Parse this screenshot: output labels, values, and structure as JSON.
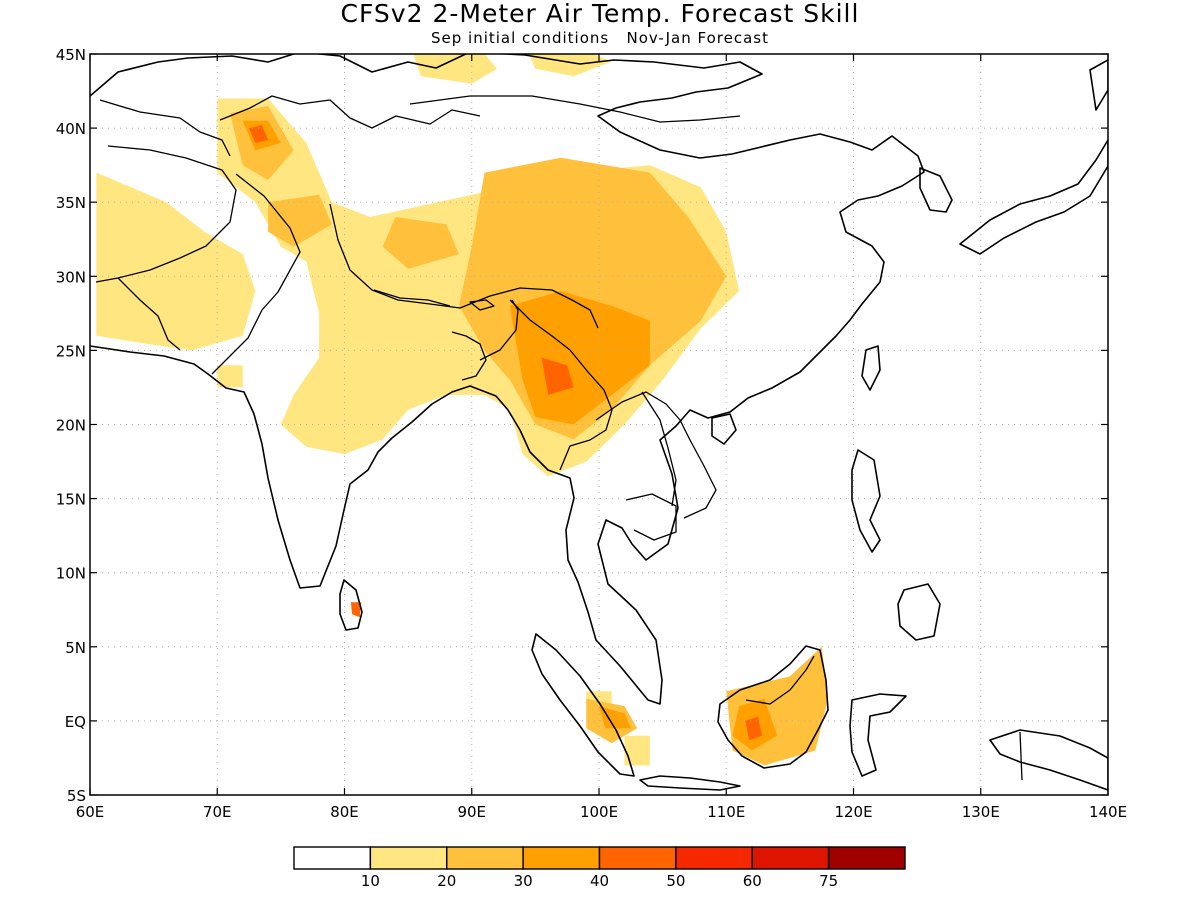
{
  "title": "CFSv2 2-Meter Air Temp. Forecast Skill",
  "subtitle": "Sep initial conditions   Nov-Jan Forecast",
  "map": {
    "lon_range": [
      60,
      140
    ],
    "lat_range": [
      -5,
      45
    ],
    "grid": true,
    "x_ticks": [
      {
        "value": 60,
        "label": "60E"
      },
      {
        "value": 70,
        "label": "70E"
      },
      {
        "value": 80,
        "label": "80E"
      },
      {
        "value": 90,
        "label": "90E"
      },
      {
        "value": 100,
        "label": "100E"
      },
      {
        "value": 110,
        "label": "110E"
      },
      {
        "value": 120,
        "label": "120E"
      },
      {
        "value": 130,
        "label": "130E"
      },
      {
        "value": 140,
        "label": "140E"
      }
    ],
    "y_ticks": [
      {
        "value": 45,
        "label": "45N"
      },
      {
        "value": 40,
        "label": "40N"
      },
      {
        "value": 35,
        "label": "35N"
      },
      {
        "value": 30,
        "label": "30N"
      },
      {
        "value": 25,
        "label": "25N"
      },
      {
        "value": 20,
        "label": "20N"
      },
      {
        "value": 15,
        "label": "15N"
      },
      {
        "value": 10,
        "label": "10N"
      },
      {
        "value": 5,
        "label": "5N"
      },
      {
        "value": 0,
        "label": "EQ"
      },
      {
        "value": -5,
        "label": "5S"
      }
    ]
  },
  "colorbar": {
    "colors": [
      "#ffffff",
      "#ffe680",
      "#ffc03c",
      "#ffa000",
      "#ff6400",
      "#f52800",
      "#dc1400",
      "#a00000"
    ],
    "labels": [
      "10",
      "20",
      "30",
      "40",
      "50",
      "60",
      "75"
    ]
  },
  "skill_regions": [
    {
      "level": 1,
      "points": [
        [
          60.5,
          37
        ],
        [
          66,
          35
        ],
        [
          69,
          33
        ],
        [
          72,
          31.5
        ],
        [
          73,
          29
        ],
        [
          72,
          26
        ],
        [
          68,
          25
        ],
        [
          64,
          25.5
        ],
        [
          60.5,
          26
        ]
      ]
    },
    {
      "level": 1,
      "points": [
        [
          70,
          42
        ],
        [
          74,
          42
        ],
        [
          77,
          39
        ],
        [
          79,
          35
        ],
        [
          82,
          34
        ],
        [
          90,
          35.5
        ],
        [
          98,
          37
        ],
        [
          104,
          37.5
        ],
        [
          108,
          36
        ],
        [
          110,
          33
        ],
        [
          111,
          29
        ],
        [
          108,
          26.5
        ],
        [
          105,
          23
        ],
        [
          102,
          20
        ],
        [
          99,
          17.5
        ],
        [
          96,
          16.5
        ],
        [
          94,
          18
        ],
        [
          93,
          21
        ],
        [
          91,
          22
        ],
        [
          88,
          22
        ],
        [
          85,
          21
        ],
        [
          83,
          19
        ],
        [
          80,
          18
        ],
        [
          77,
          18.5
        ],
        [
          75,
          20
        ],
        [
          76,
          22
        ],
        [
          78,
          24.5
        ],
        [
          78,
          27.5
        ],
        [
          77,
          31
        ],
        [
          75,
          32
        ],
        [
          73,
          35
        ],
        [
          70,
          37
        ]
      ]
    },
    {
      "level": 1,
      "points": [
        [
          85,
          46
        ],
        [
          90,
          46
        ],
        [
          92,
          44
        ],
        [
          90,
          43
        ],
        [
          86,
          43.5
        ]
      ]
    },
    {
      "level": 1,
      "points": [
        [
          94,
          46
        ],
        [
          98,
          45.5
        ],
        [
          101,
          44.5
        ],
        [
          98,
          43.5
        ],
        [
          95,
          44
        ]
      ]
    },
    {
      "level": 1,
      "points": [
        [
          70,
          24
        ],
        [
          72,
          24
        ],
        [
          72,
          22.5
        ],
        [
          70,
          22.5
        ]
      ]
    },
    {
      "level": 1,
      "points": [
        [
          102,
          -1
        ],
        [
          104,
          -1
        ],
        [
          104,
          -3
        ],
        [
          102,
          -3
        ]
      ]
    },
    {
      "level": 1,
      "points": [
        [
          99,
          2
        ],
        [
          101,
          2
        ],
        [
          101,
          0.5
        ],
        [
          99,
          0.5
        ]
      ]
    },
    {
      "level": 2,
      "points": [
        [
          71,
          41
        ],
        [
          74,
          41.5
        ],
        [
          76,
          38.5
        ],
        [
          74,
          36.5
        ],
        [
          72,
          37.5
        ]
      ]
    },
    {
      "level": 2,
      "points": [
        [
          74,
          35
        ],
        [
          78,
          35.5
        ],
        [
          79,
          33.5
        ],
        [
          76,
          32
        ],
        [
          74,
          33
        ]
      ]
    },
    {
      "level": 2,
      "points": [
        [
          84,
          34
        ],
        [
          88,
          33.5
        ],
        [
          89,
          31.5
        ],
        [
          85,
          30.5
        ],
        [
          83,
          32
        ]
      ]
    },
    {
      "level": 2,
      "points": [
        [
          91,
          37
        ],
        [
          97,
          38
        ],
        [
          104,
          37
        ],
        [
          107,
          34
        ],
        [
          110,
          30
        ],
        [
          108,
          27
        ],
        [
          104,
          24
        ],
        [
          101,
          21
        ],
        [
          98,
          19
        ],
        [
          95,
          20
        ],
        [
          93,
          23
        ],
        [
          91,
          25
        ],
        [
          89,
          28
        ],
        [
          90,
          32
        ]
      ]
    },
    {
      "level": 2,
      "points": [
        [
          110,
          2
        ],
        [
          115,
          3
        ],
        [
          117.5,
          5
        ],
        [
          118,
          1.5
        ],
        [
          117,
          -2
        ],
        [
          113,
          -3
        ],
        [
          110.5,
          -2
        ]
      ]
    },
    {
      "level": 2,
      "points": [
        [
          99,
          1.5
        ],
        [
          102,
          1
        ],
        [
          103,
          -0.5
        ],
        [
          101,
          -1.5
        ],
        [
          99,
          -0.5
        ]
      ]
    },
    {
      "level": 3,
      "points": [
        [
          72,
          40.5
        ],
        [
          74,
          40.5
        ],
        [
          75,
          39
        ],
        [
          73,
          38.5
        ]
      ]
    },
    {
      "level": 3,
      "points": [
        [
          93,
          28
        ],
        [
          97,
          29
        ],
        [
          101,
          28
        ],
        [
          104,
          27
        ],
        [
          104,
          24
        ],
        [
          101,
          22
        ],
        [
          98,
          20
        ],
        [
          95,
          20.5
        ],
        [
          94,
          23
        ]
      ]
    },
    {
      "level": 3,
      "points": [
        [
          111,
          1
        ],
        [
          113,
          1.5
        ],
        [
          114,
          -1
        ],
        [
          112,
          -2
        ],
        [
          110.5,
          -1
        ]
      ]
    },
    {
      "level": 3,
      "points": [
        [
          100,
          1
        ],
        [
          102,
          0.5
        ],
        [
          102.5,
          -0.5
        ],
        [
          100.5,
          -0.5
        ]
      ]
    },
    {
      "level": 4,
      "points": [
        [
          72.5,
          40
        ],
        [
          73.5,
          40.2
        ],
        [
          74,
          39.2
        ],
        [
          73,
          39
        ]
      ]
    },
    {
      "level": 4,
      "points": [
        [
          95.5,
          24.5
        ],
        [
          97.5,
          24
        ],
        [
          98,
          22.5
        ],
        [
          96,
          22
        ]
      ]
    },
    {
      "level": 4,
      "points": [
        [
          80.5,
          8
        ],
        [
          81.3,
          8
        ],
        [
          81.2,
          7
        ],
        [
          80.6,
          7.2
        ]
      ]
    },
    {
      "level": 4,
      "points": [
        [
          111.5,
          0
        ],
        [
          112.5,
          0.3
        ],
        [
          112.8,
          -1
        ],
        [
          111.8,
          -1.3
        ]
      ]
    }
  ]
}
